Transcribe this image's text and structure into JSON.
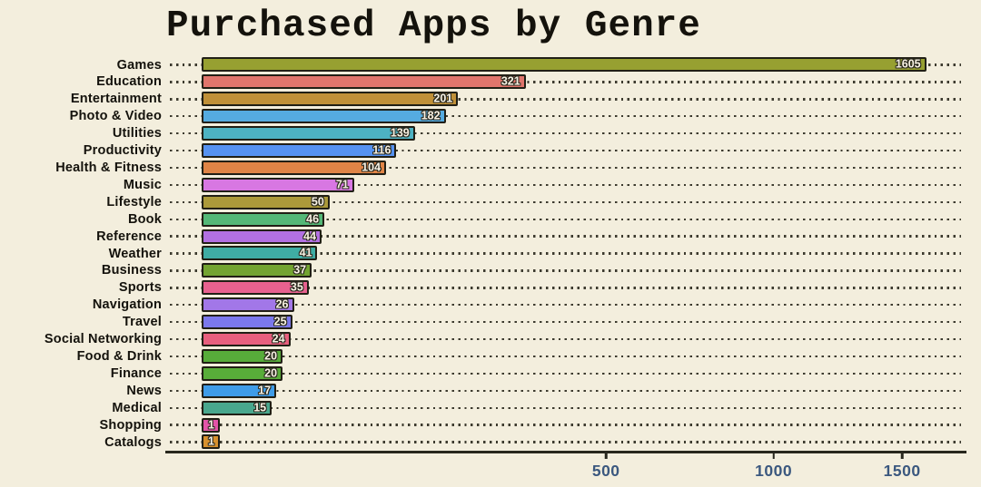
{
  "chart_data": {
    "type": "bar",
    "orientation": "horizontal",
    "title": "Purchased Apps by Genre",
    "categories": [
      "Games",
      "Education",
      "Entertainment",
      "Photo & Video",
      "Utilities",
      "Productivity",
      "Health & Fitness",
      "Music",
      "Lifestyle",
      "Book",
      "Reference",
      "Weather",
      "Business",
      "Sports",
      "Navigation",
      "Travel",
      "Social Networking",
      "Food & Drink",
      "Finance",
      "News",
      "Medical",
      "Shopping",
      "Catalogs"
    ],
    "values": [
      1605,
      321,
      201,
      182,
      139,
      116,
      104,
      71,
      50,
      46,
      44,
      41,
      37,
      35,
      26,
      25,
      24,
      20,
      20,
      17,
      15,
      1,
      1
    ],
    "bar_colors": [
      "#97a031",
      "#e0756c",
      "#c09038",
      "#55abe0",
      "#4db2c2",
      "#5692f0",
      "#e08446",
      "#d877e2",
      "#ac9a3a",
      "#54b877",
      "#b270e2",
      "#3fada4",
      "#73a431",
      "#e8618f",
      "#a277e8",
      "#7b78ec",
      "#e85f7e",
      "#57ac3a",
      "#58ad39",
      "#3f9ce8",
      "#49a78d",
      "#e354a8",
      "#d8912d"
    ],
    "x_ticks": [
      {
        "value": 500,
        "label": "500"
      },
      {
        "value": 1000,
        "label": "1000"
      },
      {
        "value": 1500,
        "label": "1500"
      }
    ],
    "xlim": [
      0,
      1780
    ],
    "x_scale": "sqrt",
    "grid": "dotted row leader lines",
    "legend": "none",
    "xlabel": "",
    "ylabel": "",
    "colors": {
      "background": "#f3eedd",
      "bar_edge": "#211f15",
      "leader_dots": "#3c3a2e",
      "axis_line": "#28271d",
      "tick_label": "#3b587f",
      "title_text": "#14120c",
      "value_text": "#f8f2e4"
    }
  }
}
